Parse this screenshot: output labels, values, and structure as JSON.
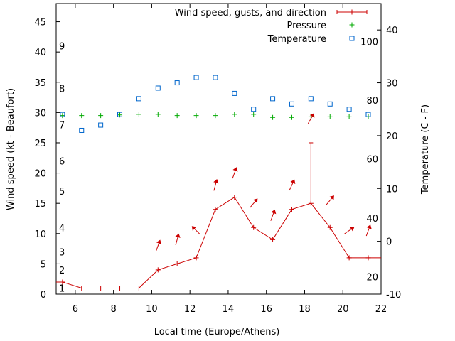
{
  "chart_data": {
    "type": "line",
    "title": "",
    "xlabel": "Local time (Europe/Athens)",
    "ylabel": "Wind speed (kt - Beaufort)",
    "y2label": "Temperature (C - F)",
    "xlim": [
      5,
      22
    ],
    "ylim": [
      0,
      48
    ],
    "y2lim": [
      -10,
      45
    ],
    "xticks": [
      "6",
      "8",
      "10",
      "12",
      "14",
      "16",
      "18",
      "20",
      "22"
    ],
    "yticks": [
      "0",
      "5",
      "10",
      "15",
      "20",
      "25",
      "30",
      "35",
      "40",
      "45"
    ],
    "y2ticks": [
      "-10",
      "0",
      "10",
      "20",
      "30",
      "40"
    ],
    "beaufort_labels": [
      {
        "text": "1",
        "kt": 1
      },
      {
        "text": "2",
        "kt": 4
      },
      {
        "text": "3",
        "kt": 7
      },
      {
        "text": "4",
        "kt": 11
      },
      {
        "text": "5",
        "kt": 17
      },
      {
        "text": "6",
        "kt": 22
      },
      {
        "text": "7",
        "kt": 28
      },
      {
        "text": "8",
        "kt": 34
      },
      {
        "text": "9",
        "kt": 41
      }
    ],
    "fahrenheit_labels": [
      {
        "text": "20",
        "c": -6.7
      },
      {
        "text": "40",
        "c": 4.4
      },
      {
        "text": "60",
        "c": 15.6
      },
      {
        "text": "80",
        "c": 26.7
      },
      {
        "text": "100",
        "c": 37.8
      }
    ],
    "legend_position": "top-right",
    "series": [
      {
        "name": "Wind speed, gusts, and direction",
        "color": "#cc0000",
        "x": [
          5,
          5.33,
          6.33,
          7.33,
          8.33,
          9.33,
          10.33,
          11.33,
          12.33,
          13.33,
          14.33,
          15.33,
          16.33,
          17.33,
          18.33,
          19.33,
          20.33,
          21.33,
          22
        ],
        "values": [
          2,
          2,
          1,
          1,
          1,
          1,
          4,
          5,
          6,
          14,
          16,
          11,
          9,
          14,
          15,
          11,
          6,
          6,
          6
        ],
        "gusts": [
          {
            "x": 18.33,
            "low": 15,
            "high": 25
          }
        ],
        "directions": [
          {
            "x": 10.33,
            "kt": 8,
            "angle": 20
          },
          {
            "x": 11.33,
            "kt": 9,
            "angle": 15
          },
          {
            "x": 12.33,
            "kt": 10.5,
            "angle": -45
          },
          {
            "x": 13.33,
            "kt": 18,
            "angle": 15
          },
          {
            "x": 14.33,
            "kt": 20,
            "angle": 20
          },
          {
            "x": 15.33,
            "kt": 15,
            "angle": 40
          },
          {
            "x": 16.33,
            "kt": 13,
            "angle": 20
          },
          {
            "x": 17.33,
            "kt": 18,
            "angle": 25
          },
          {
            "x": 18.33,
            "kt": 29,
            "angle": 30
          },
          {
            "x": 19.33,
            "kt": 15.5,
            "angle": 40
          },
          {
            "x": 20.33,
            "kt": 10.5,
            "angle": 55
          },
          {
            "x": 21.33,
            "kt": 10.5,
            "angle": 20
          }
        ]
      },
      {
        "name": "Pressure",
        "color": "#00aa00",
        "marker": "+",
        "x": [
          5.33,
          6.33,
          7.33,
          8.33,
          9.33,
          10.33,
          11.33,
          12.33,
          13.33,
          14.33,
          15.33,
          16.33,
          17.33,
          18.33,
          19.33,
          20.33,
          21.33
        ],
        "values": [
          29.5,
          29.5,
          29.5,
          29.6,
          29.7,
          29.7,
          29.5,
          29.5,
          29.5,
          29.7,
          29.7,
          29.2,
          29.2,
          29.3,
          29.3,
          29.3,
          29.3
        ]
      },
      {
        "name": "Temperature",
        "color": "#0066cc",
        "marker": "square",
        "axis": "y2",
        "x": [
          5.33,
          6.33,
          7.33,
          8.33,
          9.33,
          10.33,
          11.33,
          12.33,
          13.33,
          14.33,
          15.33,
          16.33,
          17.33,
          18.33,
          19.33,
          20.33,
          21.33
        ],
        "values": [
          24,
          21,
          22,
          24,
          27,
          29,
          30,
          31,
          31,
          28,
          25,
          27,
          26,
          27,
          26,
          25,
          24
        ]
      }
    ]
  }
}
